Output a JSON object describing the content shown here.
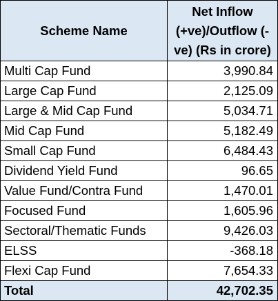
{
  "table": {
    "headers": {
      "scheme": "Scheme Name",
      "flow": "Net Inflow (+ve)/Outflow (-ve) (Rs in crore)"
    },
    "rows": [
      {
        "scheme": "Multi Cap Fund",
        "flow": "3,990.84"
      },
      {
        "scheme": "Large Cap Fund",
        "flow": "2,125.09"
      },
      {
        "scheme": "Large & Mid Cap Fund",
        "flow": "5,034.71"
      },
      {
        "scheme": "Mid Cap Fund",
        "flow": "5,182.49"
      },
      {
        "scheme": "Small Cap Fund",
        "flow": "6,484.43"
      },
      {
        "scheme": "Dividend Yield Fund",
        "flow": "96.65"
      },
      {
        "scheme": "Value Fund/Contra Fund",
        "flow": "1,470.01"
      },
      {
        "scheme": "Focused Fund",
        "flow": "1,605.96"
      },
      {
        "scheme": "Sectoral/Thematic Funds",
        "flow": "9,426.03"
      },
      {
        "scheme": "ELSS",
        "flow": "-368.18"
      },
      {
        "scheme": "Flexi Cap Fund",
        "flow": "7,654.33"
      }
    ],
    "total": {
      "label": "Total",
      "flow": "42,702.35"
    },
    "colors": {
      "header_bg": "#dbe7f3",
      "border": "#000000"
    }
  }
}
